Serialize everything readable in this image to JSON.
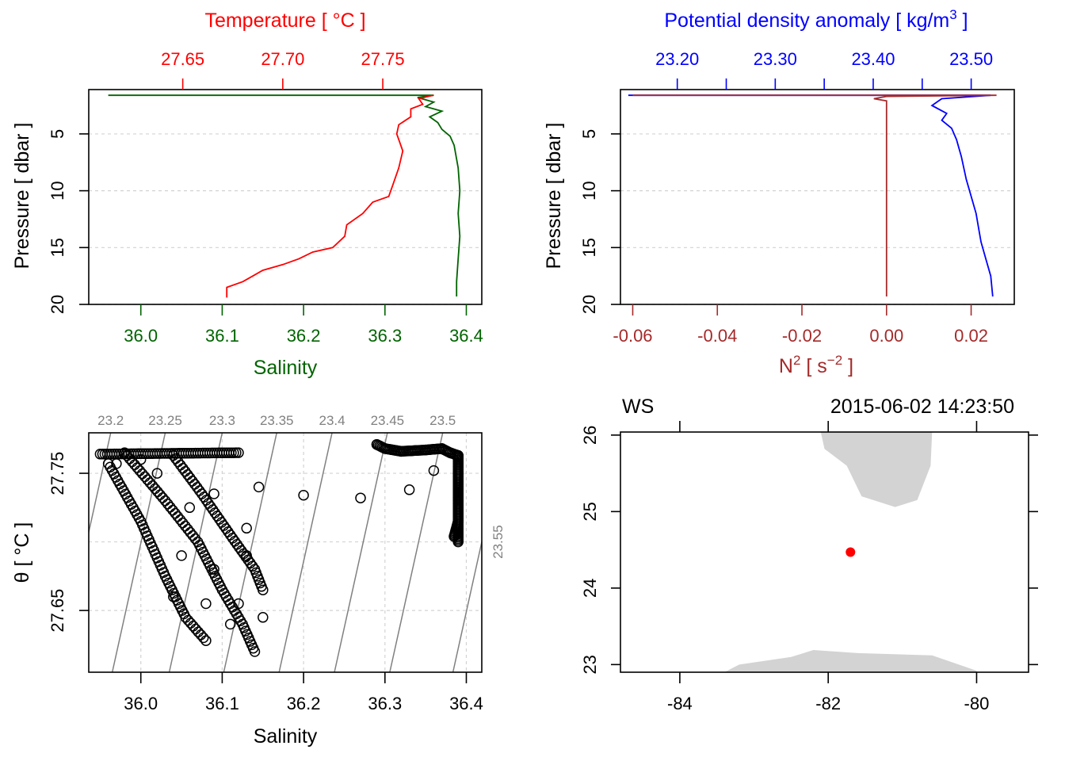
{
  "colors": {
    "temperature": "#ff0000",
    "salinity": "#006400",
    "density": "#0000ff",
    "n2": "#a52a2a",
    "gridline": "#d3d3d3",
    "isopycnal": "#808080",
    "land": "#d3d3d3",
    "station": "#ff0000"
  },
  "chart_data": [
    {
      "type": "line",
      "name": "temperature-salinity-profile",
      "top_axis": {
        "label": "Temperature [ °C ]",
        "ticks": [
          "27.65",
          "27.70",
          "27.75"
        ],
        "tick_values": [
          27.65,
          27.7,
          27.75
        ],
        "lim": [
          27.603,
          27.7995
        ]
      },
      "bottom_axis": {
        "label": "Salinity",
        "ticks": [
          "36.0",
          "36.1",
          "36.2",
          "36.3",
          "36.4"
        ],
        "tick_values": [
          36.0,
          36.1,
          36.2,
          36.3,
          36.4
        ],
        "lim": [
          35.936,
          36.419
        ]
      },
      "y_axis": {
        "label": "Pressure [ dbar ]",
        "ticks": [
          "5",
          "10",
          "15",
          "20"
        ],
        "tick_values": [
          5,
          10,
          15,
          20
        ],
        "lim": [
          20,
          1.1
        ],
        "grid": true
      },
      "series": [
        {
          "name": "Salinity",
          "axis": "bottom",
          "points": [
            [
              35.96,
              1.6
            ],
            [
              36.36,
              1.6
            ],
            [
              36.34,
              1.8
            ],
            [
              36.36,
              2.2
            ],
            [
              36.35,
              2.6
            ],
            [
              36.37,
              3.0
            ],
            [
              36.355,
              3.5
            ],
            [
              36.365,
              4.0
            ],
            [
              36.37,
              4.6
            ],
            [
              36.38,
              5.2
            ],
            [
              36.385,
              6.0
            ],
            [
              36.39,
              8.0
            ],
            [
              36.392,
              10
            ],
            [
              36.39,
              12
            ],
            [
              36.392,
              14
            ],
            [
              36.39,
              16
            ],
            [
              36.388,
              18
            ],
            [
              36.388,
              19.3
            ]
          ]
        },
        {
          "name": "Temperature",
          "axis": "top",
          "points": [
            [
              27.775,
              1.6
            ],
            [
              27.768,
              1.9
            ],
            [
              27.77,
              2.4
            ],
            [
              27.764,
              2.8
            ],
            [
              27.764,
              3.5
            ],
            [
              27.758,
              4.2
            ],
            [
              27.757,
              5.0
            ],
            [
              27.76,
              6.5
            ],
            [
              27.758,
              8.0
            ],
            [
              27.755,
              9.5
            ],
            [
              27.753,
              10.5
            ],
            [
              27.745,
              11.0
            ],
            [
              27.74,
              12.0
            ],
            [
              27.732,
              13.0
            ],
            [
              27.731,
              14.0
            ],
            [
              27.725,
              15.0
            ],
            [
              27.715,
              15.4
            ],
            [
              27.708,
              16.0
            ],
            [
              27.7,
              16.5
            ],
            [
              27.69,
              17.0
            ],
            [
              27.685,
              17.5
            ],
            [
              27.68,
              18.0
            ],
            [
              27.672,
              18.5
            ],
            [
              27.672,
              19.4
            ]
          ]
        }
      ]
    },
    {
      "type": "line",
      "name": "density-n2-profile",
      "top_axis": {
        "label": "Potential density anomaly [ kg/m",
        "label_sup": "3",
        "label_end": " ]",
        "ticks": [
          "23.20",
          "23.30",
          "23.40",
          "23.50"
        ],
        "tick_values": [
          23.2,
          23.3,
          23.4,
          23.5
        ],
        "minor_tick_values": [
          23.25,
          23.35,
          23.45
        ],
        "lim": [
          23.142,
          23.544
        ]
      },
      "bottom_axis": {
        "label": "N",
        "label_sup": "2",
        "label_mid": " [ s",
        "label_sup2": "−2",
        "label_end": " ]",
        "ticks": [
          "-0.06",
          "-0.04",
          "-0.02",
          "0.00",
          "0.02"
        ],
        "tick_values": [
          -0.06,
          -0.04,
          -0.02,
          0.0,
          0.02
        ],
        "lim": [
          -0.0629,
          0.0302
        ]
      },
      "y_axis": {
        "label": "Pressure [ dbar ]",
        "ticks": [
          "5",
          "10",
          "15",
          "20"
        ],
        "tick_values": [
          5,
          10,
          15,
          20
        ],
        "lim": [
          20,
          1.1
        ],
        "grid": true
      },
      "series": [
        {
          "name": "Potential density anomaly",
          "axis": "top",
          "points": [
            [
              23.15,
              1.6
            ],
            [
              23.52,
              1.6
            ],
            [
              23.47,
              1.9
            ],
            [
              23.46,
              2.5
            ],
            [
              23.475,
              3.2
            ],
            [
              23.47,
              3.8
            ],
            [
              23.48,
              4.5
            ],
            [
              23.485,
              5.5
            ],
            [
              23.49,
              7.0
            ],
            [
              23.495,
              9.0
            ],
            [
              23.5,
              10.5
            ],
            [
              23.505,
              12.0
            ],
            [
              23.508,
              13.5
            ],
            [
              23.51,
              14.5
            ],
            [
              23.515,
              16.0
            ],
            [
              23.52,
              17.5
            ],
            [
              23.522,
              19.3
            ]
          ]
        },
        {
          "name": "N2",
          "axis": "bottom",
          "points": [
            [
              -0.06,
              1.6
            ],
            [
              0.026,
              1.6
            ],
            [
              0.0,
              1.7
            ],
            [
              -0.003,
              1.9
            ],
            [
              0.0,
              2.1
            ],
            [
              0.0,
              19.3
            ]
          ]
        }
      ]
    },
    {
      "type": "scatter",
      "name": "ts-diagram",
      "x_axis": {
        "label": "Salinity",
        "ticks": [
          "36.0",
          "36.1",
          "36.2",
          "36.3",
          "36.4"
        ],
        "tick_values": [
          36.0,
          36.1,
          36.2,
          36.3,
          36.4
        ],
        "lim": [
          35.936,
          36.419
        ],
        "grid": true
      },
      "y_axis": {
        "label": "θ [ °C ]",
        "ticks": [
          "27.65",
          "27.75"
        ],
        "tick_values": [
          27.65,
          27.75
        ],
        "grid_values": [
          27.65,
          27.7,
          27.75
        ],
        "lim": [
          27.605,
          27.7795
        ]
      },
      "isopycnals": [
        "23.2",
        "23.25",
        "23.3",
        "23.35",
        "23.4",
        "23.45",
        "23.5",
        "23.55"
      ],
      "isopycnal_top_salinity": [
        35.963,
        36.03,
        36.1,
        36.167,
        36.235,
        36.303,
        36.371
      ],
      "isopycnal_right_temperature": [
        27.7
      ],
      "isopycnal_slope_psu_per_degC": 0.373,
      "cold_branch_line": [
        [
          35.96,
          27.757
        ],
        [
          36.0,
          27.715
        ],
        [
          36.03,
          27.675
        ],
        [
          36.055,
          27.645
        ],
        [
          36.08,
          27.628
        ]
      ],
      "mid_branch_line": [
        [
          35.98,
          27.765
        ],
        [
          36.03,
          27.73
        ],
        [
          36.07,
          27.7
        ],
        [
          36.1,
          27.665
        ],
        [
          36.125,
          27.64
        ],
        [
          36.14,
          27.62
        ]
      ],
      "warm_branch_line": [
        [
          36.04,
          27.763
        ],
        [
          36.075,
          27.735
        ],
        [
          36.11,
          27.705
        ],
        [
          36.14,
          27.68
        ],
        [
          36.15,
          27.665
        ]
      ],
      "surface_band_line": [
        [
          35.95,
          27.764
        ],
        [
          36.12,
          27.765
        ]
      ],
      "vertical_column_line": [
        [
          36.39,
          27.763
        ],
        [
          36.39,
          27.7
        ]
      ],
      "scattered_points": [
        [
          35.97,
          27.757
        ],
        [
          36.0,
          27.76
        ],
        [
          36.02,
          27.75
        ],
        [
          36.06,
          27.725
        ],
        [
          36.09,
          27.735
        ],
        [
          36.13,
          27.71
        ],
        [
          36.145,
          27.74
        ],
        [
          36.2,
          27.734
        ],
        [
          36.27,
          27.732
        ],
        [
          36.33,
          27.738
        ],
        [
          36.36,
          27.752
        ],
        [
          36.09,
          27.68
        ],
        [
          36.12,
          27.655
        ],
        [
          36.15,
          27.645
        ],
        [
          36.13,
          27.69
        ],
        [
          36.05,
          27.69
        ],
        [
          36.04,
          27.66
        ],
        [
          36.08,
          27.655
        ],
        [
          36.11,
          27.64
        ]
      ],
      "warm_cluster": [
        [
          36.29,
          27.771
        ],
        [
          36.3,
          27.768
        ],
        [
          36.32,
          27.766
        ],
        [
          36.35,
          27.767
        ],
        [
          36.37,
          27.768
        ],
        [
          36.38,
          27.765
        ],
        [
          36.39,
          27.763
        ],
        [
          36.39,
          27.755
        ],
        [
          36.39,
          27.73
        ],
        [
          36.39,
          27.715
        ],
        [
          36.385,
          27.704
        ]
      ]
    },
    {
      "type": "map",
      "name": "station-map",
      "station_name": "WS",
      "datetime": "2015-06-02 14:23:50",
      "x_axis": {
        "ticks": [
          "-84",
          "-82",
          "-80"
        ],
        "tick_values": [
          -84,
          -82,
          -80
        ],
        "lim": [
          -84.8,
          -79.3
        ]
      },
      "y_axis": {
        "ticks": [
          "23",
          "24",
          "25",
          "26"
        ],
        "tick_values": [
          23,
          24,
          25,
          26
        ],
        "lim": [
          22.9,
          26.04
        ]
      },
      "station": {
        "lon": -81.7,
        "lat": 24.47
      },
      "land_north": [
        [
          -81.0,
          26.04
        ],
        [
          -80.6,
          26.04
        ],
        [
          -80.62,
          25.6
        ],
        [
          -80.8,
          25.15
        ],
        [
          -81.1,
          25.06
        ],
        [
          -81.55,
          25.2
        ],
        [
          -81.75,
          25.6
        ],
        [
          -82.05,
          25.82
        ],
        [
          -82.1,
          26.04
        ]
      ],
      "land_south": [
        [
          -83.4,
          22.9
        ],
        [
          -83.2,
          23.0
        ],
        [
          -82.5,
          23.1
        ],
        [
          -82.2,
          23.19
        ],
        [
          -81.6,
          23.15
        ],
        [
          -80.6,
          23.12
        ],
        [
          -80.0,
          22.92
        ],
        [
          -80.0,
          22.9
        ]
      ]
    }
  ]
}
